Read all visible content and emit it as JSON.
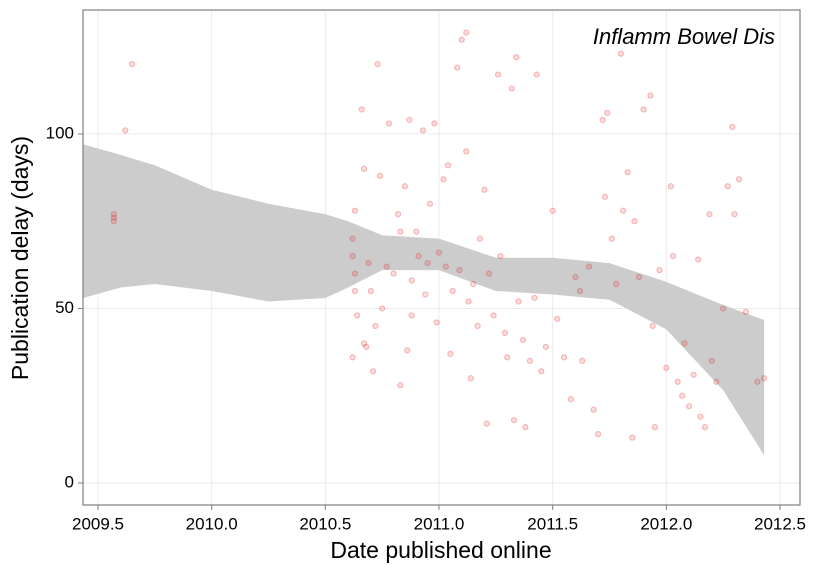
{
  "chart_data": {
    "type": "scatter",
    "annotation": "Inflamm Bowel Dis",
    "xlabel": "Date published online",
    "ylabel": "Publication delay (days)",
    "color": "#e41a1c",
    "grid": true,
    "xlim": [
      2009.434,
      2012.588
    ],
    "ylim": [
      -6.3,
      135.5
    ],
    "xticks": [
      2009.5,
      {
        "value": 2010,
        "label": "2010.0"
      },
      2010.5,
      {
        "value": 2011,
        "label": "2011.0"
      },
      2011.5,
      {
        "value": 2012,
        "label": "2012.0"
      },
      2012.5
    ],
    "yticks": [
      0,
      50,
      100
    ],
    "x": [
      2009.57,
      2009.57,
      2009.57,
      2009.62,
      2009.65,
      2010.62,
      2010.62,
      2010.63,
      2010.63,
      2010.62,
      2010.63,
      2010.64,
      2010.66,
      2010.67,
      2010.67,
      2010.68,
      2010.69,
      2010.7,
      2010.71,
      2010.72,
      2010.73,
      2010.74,
      2010.75,
      2010.77,
      2010.78,
      2010.8,
      2010.82,
      2010.83,
      2010.83,
      2010.85,
      2010.86,
      2010.87,
      2010.88,
      2010.88,
      2010.9,
      2010.91,
      2010.93,
      2010.94,
      2010.95,
      2010.96,
      2010.98,
      2010.99,
      2011.0,
      2011.02,
      2011.03,
      2011.04,
      2011.05,
      2011.06,
      2011.08,
      2011.09,
      2011.1,
      2011.12,
      2011.12,
      2011.13,
      2011.14,
      2011.15,
      2011.17,
      2011.18,
      2011.2,
      2011.21,
      2011.22,
      2011.24,
      2011.26,
      2011.27,
      2011.29,
      2011.3,
      2011.32,
      2011.33,
      2011.34,
      2011.35,
      2011.37,
      2011.38,
      2011.4,
      2011.42,
      2011.43,
      2011.45,
      2011.47,
      2011.5,
      2011.52,
      2011.55,
      2011.58,
      2011.6,
      2011.62,
      2011.63,
      2011.66,
      2011.68,
      2011.7,
      2011.72,
      2011.73,
      2011.74,
      2011.76,
      2011.78,
      2011.8,
      2011.81,
      2011.83,
      2011.85,
      2011.86,
      2011.88,
      2011.9,
      2011.93,
      2011.94,
      2011.95,
      2011.97,
      2012.0,
      2012.02,
      2012.03,
      2012.05,
      2012.07,
      2012.08,
      2012.1,
      2012.12,
      2012.14,
      2012.15,
      2012.17,
      2012.19,
      2012.2,
      2012.22,
      2012.25,
      2012.27,
      2012.29,
      2012.3,
      2012.32,
      2012.35,
      2012.4,
      2012.43
    ],
    "values": [
      77,
      76,
      75,
      101,
      120,
      70,
      65,
      60,
      55,
      36,
      78,
      48,
      107,
      90,
      40,
      39,
      63,
      55,
      32,
      45,
      120,
      88,
      50,
      62,
      103,
      60,
      77,
      72,
      28,
      85,
      38,
      104,
      48,
      58,
      72,
      65,
      101,
      54,
      63,
      80,
      103,
      46,
      66,
      87,
      62,
      91,
      37,
      55,
      119,
      61,
      127,
      129,
      95,
      52,
      30,
      57,
      45,
      70,
      84,
      17,
      60,
      48,
      117,
      65,
      43,
      36,
      113,
      18,
      122,
      52,
      41,
      16,
      35,
      53,
      117,
      32,
      39,
      78,
      47,
      36,
      24,
      59,
      55,
      35,
      62,
      21,
      14,
      104,
      82,
      106,
      70,
      57,
      123,
      78,
      89,
      13,
      75,
      59,
      107,
      111,
      45,
      16,
      61,
      33,
      85,
      65,
      29,
      25,
      40,
      22,
      31,
      64,
      19,
      16,
      77,
      35,
      29,
      50,
      85,
      102,
      77,
      87,
      49,
      29,
      30
    ],
    "band": {
      "color": "#cccccc",
      "x": [
        2009.434,
        2009.6,
        2009.75,
        2010.0,
        2010.25,
        2010.5,
        2010.6,
        2010.75,
        2011.0,
        2011.25,
        2011.5,
        2011.75,
        2012.0,
        2012.25,
        2012.43
      ],
      "upper": [
        97,
        94,
        91,
        84,
        80,
        77,
        75,
        71,
        70,
        64.5,
        64.5,
        63,
        57.6,
        51,
        46.7
      ],
      "lower": [
        53,
        56,
        57,
        55,
        52,
        53,
        56,
        61,
        61,
        55,
        54,
        52.5,
        44,
        26.6,
        8
      ]
    }
  }
}
